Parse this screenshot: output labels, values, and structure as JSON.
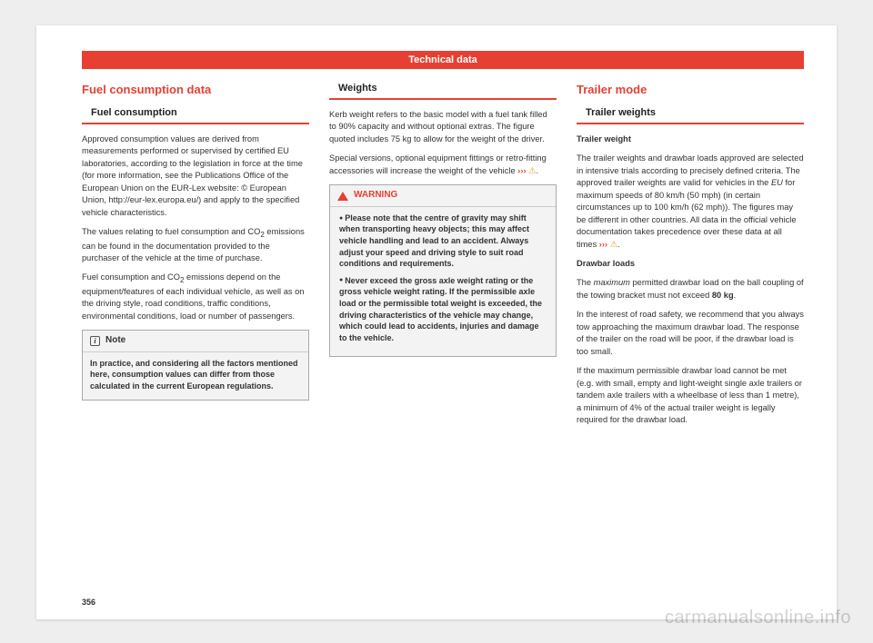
{
  "header": {
    "title": "Technical data"
  },
  "pagenum": "356",
  "watermark": "carmanualsonline.info",
  "col1": {
    "h1": "Fuel consumption data",
    "h2": "Fuel consumption",
    "p1": "Approved consumption values are derived from measurements performed or supervised by certified EU laboratories, according to the legislation in force at the time (for more information, see the Publications Office of the European Union on the EUR-Lex website: © European Union, http://eur-lex.europa.eu/) and apply to the specified vehicle characteristics.",
    "p2a": "The values relating to fuel consumption and CO",
    "p2b": " emissions can be found in the documentation provided to the purchaser of the vehicle at the time of purchase.",
    "p3a": "Fuel consumption and CO",
    "p3b": " emissions depend on the equipment/features of each individual vehicle, as well as on the driving style, road conditions, traffic conditions, environmental conditions, load or number of passengers.",
    "note_head": "Note",
    "note_body": "In practice, and considering all the factors mentioned here, consumption values can differ from those calculated in the current European regulations."
  },
  "col2": {
    "h2": "Weights",
    "p1": "Kerb weight refers to the basic model with a fuel tank filled to 90% capacity and without optional extras. The figure quoted includes 75 kg to allow for the weight of the driver.",
    "p2a": "Special versions, optional equipment fittings or retro-fitting accessories will increase the weight of the vehicle ",
    "link": "›››",
    "warn_head": "WARNING",
    "warn_li1": "Please note that the centre of gravity may shift when transporting heavy objects; this may affect vehicle handling and lead to an accident. Always adjust your speed and driving style to suit road conditions and requirements.",
    "warn_li2": "Never exceed the gross axle weight rating or the gross vehicle weight rating. If the permissible axle load or the permissible total weight is exceeded, the driving characteristics of the vehicle may change, which could lead to accidents, injuries and damage to the vehicle."
  },
  "col3": {
    "h1": "Trailer mode",
    "h2": "Trailer weights",
    "sub1": "Trailer weight",
    "p1a": "The trailer weights and drawbar loads approved are selected in intensive trials according to precisely defined criteria. The approved trailer weights are valid for vehicles in the ",
    "p1b": "EU",
    "p1c": " for maximum speeds of 80 km/h (50 mph) (in certain circumstances up to 100 km/h (62 mph)). The figures may be different in other countries. All data in the official vehicle documentation takes precedence over these data at all times ",
    "link": "›››",
    "sub2": "Drawbar loads",
    "p2a": "The ",
    "p2b": "maximum",
    "p2c": " permitted drawbar load on the ball coupling of the towing bracket must not exceed ",
    "p2d": "80 kg",
    "p2e": ".",
    "p3": "In the interest of road safety, we recommend that you always tow approaching the maximum drawbar load. The response of the trailer on the road will be poor, if the drawbar load is too small.",
    "p4": "If the maximum permissible drawbar load cannot be met (e.g. with small, empty and light-weight single axle trailers or tandem axle trailers with a wheelbase of less than 1 metre), a minimum of 4% of the actual trailer weight is legally required for the drawbar load."
  }
}
